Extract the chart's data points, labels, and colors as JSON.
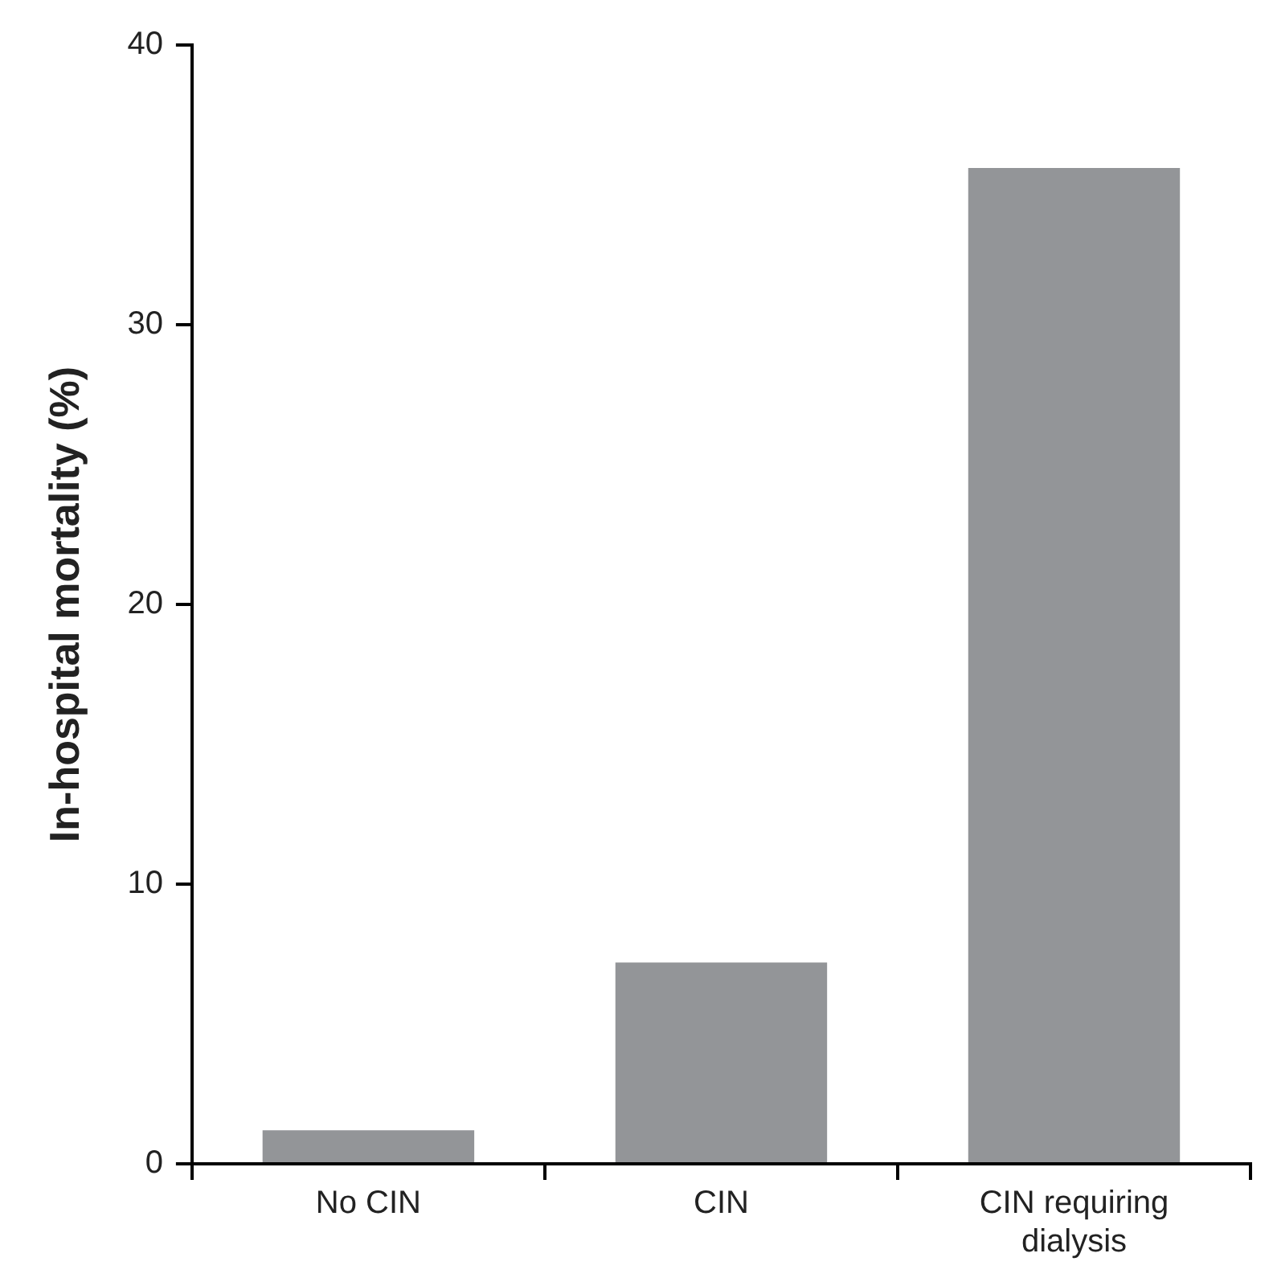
{
  "chart_data": {
    "type": "bar",
    "ylabel": "In-hospital mortality (%)",
    "categories": [
      "No CIN",
      "CIN",
      "CIN requiring dialysis"
    ],
    "values": [
      1.2,
      7.2,
      35.6
    ],
    "color": "#939598",
    "ylim": [
      0,
      40
    ],
    "yticks": [
      0,
      10,
      20,
      30,
      40
    ],
    "grid": false,
    "legend": false
  }
}
